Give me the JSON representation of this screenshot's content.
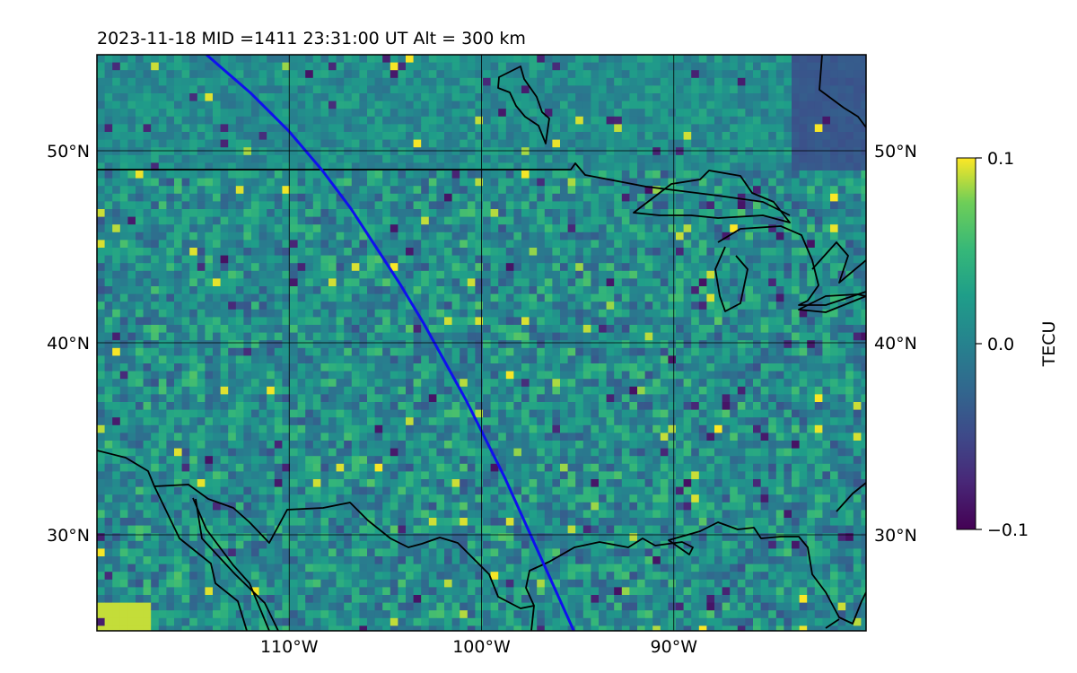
{
  "map": {
    "title": "2023-11-18  MID =1411    23:31:00  UT  Alt = 300 km",
    "lon_range": [
      -120,
      -80
    ],
    "lat_range": [
      25,
      55
    ],
    "lon_ticks": [
      {
        "value": -110,
        "label": "110°W"
      },
      {
        "value": -100,
        "label": "100°W"
      },
      {
        "value": -90,
        "label": "90°W"
      }
    ],
    "lat_ticks": [
      {
        "value": 30,
        "label": "30°N"
      },
      {
        "value": 40,
        "label": "40°N"
      },
      {
        "value": 50,
        "label": "50°N"
      }
    ],
    "grid": true,
    "satellite_track_color": "#1010ee",
    "coastline_color": "#000000",
    "satellite_track": [
      [
        -114.3,
        55
      ],
      [
        -112.0,
        53
      ],
      [
        -110.0,
        51
      ],
      [
        -108.3,
        49
      ],
      [
        -106.8,
        47
      ],
      [
        -105.5,
        45
      ],
      [
        -104.2,
        43
      ],
      [
        -103.0,
        41
      ],
      [
        -101.9,
        39
      ],
      [
        -100.8,
        37
      ],
      [
        -99.8,
        35
      ],
      [
        -98.8,
        33
      ],
      [
        -97.9,
        31
      ],
      [
        -97.0,
        29
      ],
      [
        -96.1,
        27
      ],
      [
        -95.2,
        25
      ]
    ]
  },
  "colorbar": {
    "label": "TECU",
    "colormap": "viridis",
    "min": -0.1,
    "max": 0.1,
    "ticks": [
      {
        "value": 0.1,
        "label": "0.1"
      },
      {
        "value": 0.0,
        "label": "0.0"
      },
      {
        "value": -0.1,
        "label": "−0.1"
      }
    ]
  }
}
